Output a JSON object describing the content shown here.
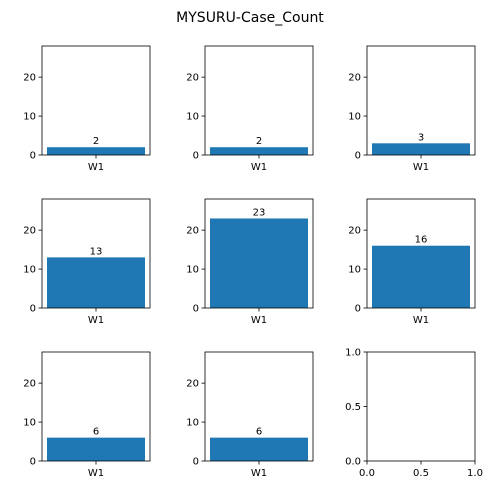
{
  "title": "MYSURU-Case_Count",
  "chart_data": {
    "type": "bar",
    "title": "MYSURU-Case_Count",
    "bar_color": "#1f77b4",
    "grid": false,
    "panels": [
      {
        "categories": [
          "W1"
        ],
        "values": [
          2
        ],
        "data_labels": [
          "2"
        ],
        "ylim": [
          0,
          28
        ],
        "yticks": [
          0,
          10,
          20
        ]
      },
      {
        "categories": [
          "W1"
        ],
        "values": [
          2
        ],
        "data_labels": [
          "2"
        ],
        "ylim": [
          0,
          28
        ],
        "yticks": [
          0,
          10,
          20
        ]
      },
      {
        "categories": [
          "W1"
        ],
        "values": [
          3
        ],
        "data_labels": [
          "3"
        ],
        "ylim": [
          0,
          28
        ],
        "yticks": [
          0,
          10,
          20
        ]
      },
      {
        "categories": [
          "W1"
        ],
        "values": [
          13
        ],
        "data_labels": [
          "13"
        ],
        "ylim": [
          0,
          28
        ],
        "yticks": [
          0,
          10,
          20
        ]
      },
      {
        "categories": [
          "W1"
        ],
        "values": [
          23
        ],
        "data_labels": [
          "23"
        ],
        "ylim": [
          0,
          28
        ],
        "yticks": [
          0,
          10,
          20
        ]
      },
      {
        "categories": [
          "W1"
        ],
        "values": [
          16
        ],
        "data_labels": [
          "16"
        ],
        "ylim": [
          0,
          28
        ],
        "yticks": [
          0,
          10,
          20
        ]
      },
      {
        "categories": [
          "W1"
        ],
        "values": [
          6
        ],
        "data_labels": [
          "6"
        ],
        "ylim": [
          0,
          28
        ],
        "yticks": [
          0,
          10,
          20
        ]
      },
      {
        "categories": [
          "W1"
        ],
        "values": [
          6
        ],
        "data_labels": [
          "6"
        ],
        "ylim": [
          0,
          28
        ],
        "yticks": [
          0,
          10,
          20
        ]
      },
      {
        "empty": true,
        "xlim": [
          0,
          1
        ],
        "ylim": [
          0,
          1
        ],
        "xticks": [
          "0.0",
          "0.5",
          "1.0"
        ],
        "yticks": [
          "0.0",
          "0.5",
          "1.0"
        ]
      }
    ]
  }
}
